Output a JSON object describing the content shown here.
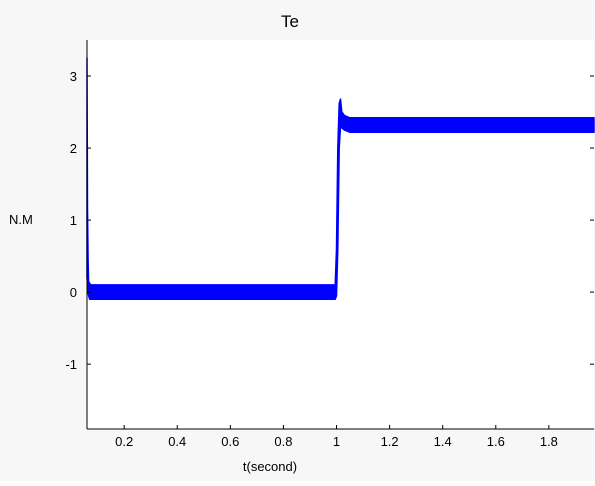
{
  "chart_data": {
    "type": "line",
    "title": "Te",
    "xlabel": "t(second)",
    "ylabel": "N.M",
    "xlim": [
      0.06,
      1.97
    ],
    "ylim": [
      -1.9,
      3.5
    ],
    "xticks": [
      0.2,
      0.4,
      0.6,
      0.8,
      1,
      1.2,
      1.4,
      1.6,
      1.8
    ],
    "xtick_labels": [
      "0.2",
      "0.4",
      "0.6",
      "0.8",
      "1",
      "1.2",
      "1.4",
      "1.6",
      "1.8"
    ],
    "yticks": [
      -1,
      0,
      1,
      2,
      3
    ],
    "ytick_labels": [
      "-1",
      "0",
      "1",
      "2",
      "3"
    ],
    "grid": false,
    "series_color": "#0000ff",
    "series": [
      {
        "x": [
          0.06,
          0.062,
          0.064,
          0.066,
          0.07,
          0.075,
          0.08,
          0.1,
          0.3,
          0.5,
          0.7,
          0.9,
          0.995,
          1.0,
          1.005,
          1.01,
          1.015,
          1.02,
          1.03,
          1.05,
          1.2,
          1.4,
          1.6,
          1.8,
          1.97
        ],
        "y_upper": [
          3.25,
          1.15,
          0.45,
          0.15,
          0.12,
          0.1,
          0.1,
          0.1,
          0.1,
          0.1,
          0.1,
          0.1,
          0.1,
          0.6,
          2.0,
          2.62,
          2.68,
          2.5,
          2.45,
          2.42,
          2.42,
          2.42,
          2.42,
          2.42,
          2.42
        ],
        "y_lower": [
          0.2,
          0.1,
          0.0,
          -0.05,
          -0.1,
          -0.1,
          -0.1,
          -0.1,
          -0.1,
          -0.1,
          -0.1,
          -0.1,
          -0.1,
          -0.05,
          0.6,
          2.0,
          2.3,
          2.28,
          2.25,
          2.22,
          2.22,
          2.22,
          2.22,
          2.22,
          2.22
        ]
      }
    ]
  }
}
